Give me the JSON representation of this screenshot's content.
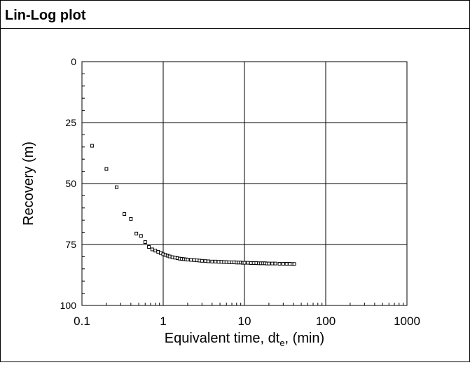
{
  "panel": {
    "title": "Lin-Log plot"
  },
  "chart_data": {
    "type": "scatter",
    "title": "",
    "xlabel": "Equivalent time, dt",
    "xlabel_sub": "e",
    "xlabel_suffix": ", (min)",
    "ylabel": "Recovery (m)",
    "xscale": "log",
    "xlim": [
      0.1,
      1000
    ],
    "ylim": [
      100,
      0
    ],
    "y_inverted": true,
    "grid": true,
    "marker": "open-square",
    "x_ticks": [
      "0.1",
      "1",
      "10",
      "100",
      "1000"
    ],
    "y_ticks": [
      "0",
      "25",
      "50",
      "75",
      "100"
    ],
    "series": [
      {
        "x": [
          0.133,
          0.2,
          0.267,
          0.333,
          0.4,
          0.467,
          0.533,
          0.6,
          0.667,
          0.733,
          0.8,
          0.867,
          0.933,
          1.0,
          1.067,
          1.133,
          1.2,
          1.3,
          1.4,
          1.5,
          1.6,
          1.7,
          1.8,
          1.9,
          2.0,
          2.2,
          2.4,
          2.6,
          2.8,
          3.0,
          3.3,
          3.6,
          4.0,
          4.4,
          4.8,
          5.2,
          5.6,
          6.0,
          6.5,
          7.0,
          7.5,
          8.0,
          8.5,
          9.0,
          9.5,
          10.0,
          11.0,
          12.0,
          13.0,
          14.0,
          15.0,
          16.0,
          17.0,
          18.0,
          19.0,
          20.0,
          22.0,
          24.0,
          27.0,
          30.0,
          33.0,
          36.0,
          39.0,
          41.0
        ],
        "y": [
          34.5,
          44.0,
          51.5,
          62.5,
          64.5,
          70.5,
          71.5,
          74.0,
          76.0,
          77.0,
          77.5,
          78.0,
          78.5,
          79.0,
          79.3,
          79.6,
          79.9,
          80.2,
          80.4,
          80.6,
          80.8,
          80.9,
          81.0,
          81.1,
          81.2,
          81.3,
          81.4,
          81.5,
          81.6,
          81.7,
          81.8,
          81.9,
          82.0,
          82.0,
          82.1,
          82.1,
          82.2,
          82.2,
          82.3,
          82.3,
          82.3,
          82.4,
          82.4,
          82.4,
          82.5,
          82.5,
          82.5,
          82.6,
          82.6,
          82.6,
          82.7,
          82.7,
          82.7,
          82.7,
          82.8,
          82.8,
          82.8,
          82.8,
          82.9,
          82.9,
          82.9,
          82.9,
          83.0,
          83.0
        ]
      }
    ]
  }
}
